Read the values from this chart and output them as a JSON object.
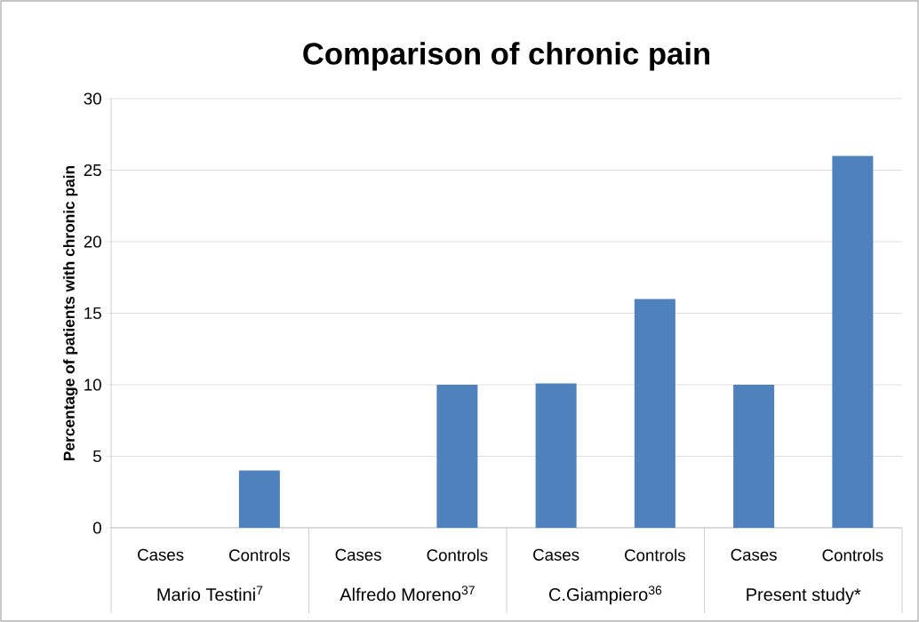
{
  "chart_data": {
    "type": "bar",
    "title": "Comparison of chronic pain",
    "ylabel": "Percentage of patients with chronic pain",
    "categories": [
      "Cases",
      "Controls",
      "Cases",
      "Controls",
      "Cases",
      "Controls",
      "Cases",
      "Controls"
    ],
    "values": [
      0,
      4,
      0,
      10,
      10.1,
      16,
      10,
      26
    ],
    "color": "#4f81bd",
    "annotations": [
      "Mario Testini$^{7}$",
      "Alfredo Moreno$^{37}$",
      "C.Giampiero$^{36}$",
      "Present study*"
    ],
    "ylim": [
      0,
      30
    ],
    "yticks": [
      0,
      5,
      10,
      15,
      20,
      25,
      30
    ],
    "grid": "y"
  }
}
